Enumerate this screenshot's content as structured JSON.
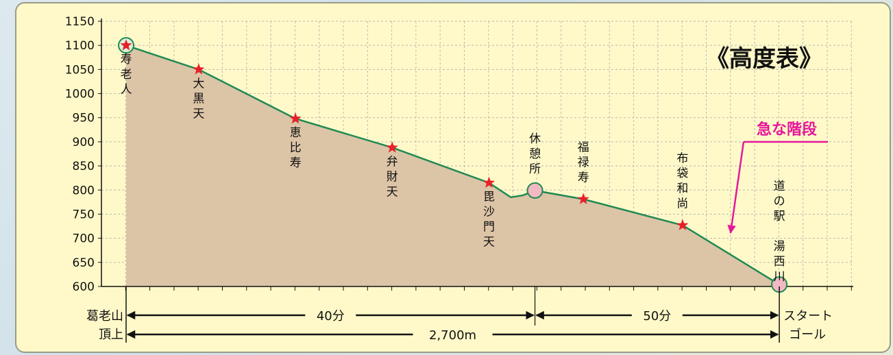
{
  "colors": {
    "line": "#1e8a52",
    "fill": "#dcc4a6",
    "star": "#e8202a",
    "rest": "#f3b9c2",
    "annotation": "#e6169b",
    "background": "#fff9c9"
  },
  "chart_data": {
    "type": "area",
    "title": "《高度表》",
    "ylim": [
      600,
      1150
    ],
    "yticks": [
      1150,
      1100,
      1050,
      1000,
      950,
      900,
      850,
      800,
      750,
      700,
      650,
      600
    ],
    "grid": true,
    "profile": [
      {
        "x": 0,
        "y": 1100
      },
      {
        "x": 1.5,
        "y": 1050
      },
      {
        "x": 3.5,
        "y": 948
      },
      {
        "x": 5.5,
        "y": 888
      },
      {
        "x": 7.5,
        "y": 815
      },
      {
        "x": 7.95,
        "y": 785
      },
      {
        "x": 8.2,
        "y": 789
      },
      {
        "x": 8.45,
        "y": 799
      },
      {
        "x": 9.45,
        "y": 781
      },
      {
        "x": 11.5,
        "y": 727
      },
      {
        "x": 13.5,
        "y": 604
      }
    ],
    "points": [
      {
        "label": "寿老人",
        "x": 0,
        "y": 1100,
        "marker": "star-circle",
        "text_pos": "below"
      },
      {
        "label": "大黒天",
        "x": 1.5,
        "y": 1050,
        "marker": "star",
        "text_pos": "below"
      },
      {
        "label": "恵比寿",
        "x": 3.5,
        "y": 948,
        "marker": "star",
        "text_pos": "below"
      },
      {
        "label": "弁財天",
        "x": 5.5,
        "y": 888,
        "marker": "star",
        "text_pos": "below"
      },
      {
        "label": "毘沙門天",
        "x": 7.5,
        "y": 815,
        "marker": "star",
        "text_pos": "below"
      },
      {
        "label": "休憩所",
        "x": 8.45,
        "y": 799,
        "marker": "circle",
        "text_pos": "above"
      },
      {
        "label": "福禄寿",
        "x": 9.45,
        "y": 781,
        "marker": "star",
        "text_pos": "above"
      },
      {
        "label": "布袋和尚",
        "x": 11.5,
        "y": 727,
        "marker": "star",
        "text_pos": "above"
      },
      {
        "label": "道の駅 湯西川",
        "x": 13.5,
        "y": 604,
        "marker": "circle",
        "text_pos": "above"
      }
    ],
    "annotation": {
      "label": "急な階段"
    },
    "start": {
      "line1": "葛老山",
      "line2": "頂上"
    },
    "end": {
      "line1": "スタート",
      "line2": "ゴール"
    },
    "durations": [
      {
        "label": "40分",
        "from": 0,
        "to": 8.45
      },
      {
        "label": "50分",
        "from": 8.45,
        "to": 13.5
      }
    ],
    "distance": {
      "label": "2,700m",
      "from": 0,
      "to": 13.5
    }
  }
}
